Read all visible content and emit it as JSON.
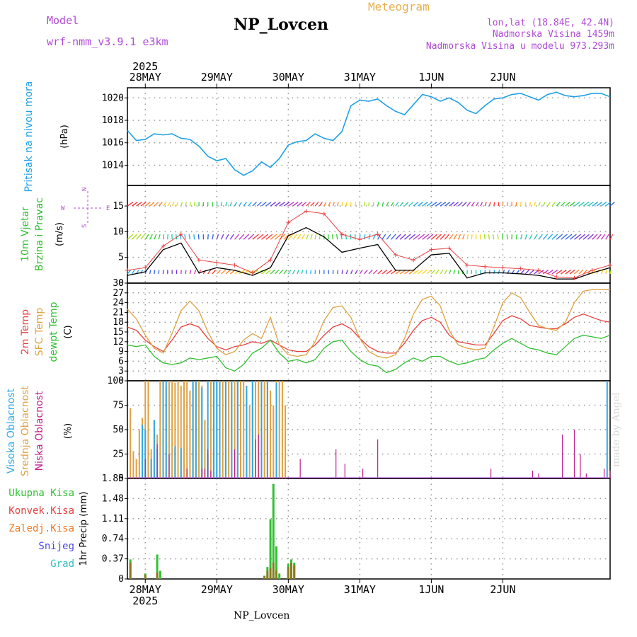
{
  "header": {
    "model_label": "Model",
    "model_name": "wrf-nmm_v3.9.1 e3km",
    "station": "NP_Lovcen",
    "product": "Meteogram",
    "lonlat": "lon,lat (18.84E, 42.4N)",
    "elevation": "Nadmorska Visina 1459m",
    "model_elevation": "Nadmorska Visina u modelu 973.293m"
  },
  "footer": {
    "station": "NP_Lovcen",
    "credit": "made by Angel"
  },
  "colors": {
    "pressure": "#1ea0e6",
    "temp2m": "#e84040",
    "sfc": "#e0a040",
    "dewpt": "#30c030",
    "high_cloud": "#30a8e8",
    "mid_cloud": "#e0a040",
    "low_cloud": "#c0208f",
    "total": "#30c030",
    "convective": "#e84040",
    "freezing": "#f07820",
    "snow": "#4a4ae8",
    "hail": "#30c0c0"
  },
  "chart_data": [
    {
      "type": "line",
      "id": "pressure",
      "title": "Pritisak na nivou mora",
      "ylabel": "(hPa)",
      "ylim": [
        1012.2,
        1020.9
      ],
      "yticks": [
        1014,
        1016,
        1018,
        1020
      ],
      "x_unit": "hours since 2025-05-27 18:00",
      "x": [
        0,
        3,
        6,
        9,
        12,
        15,
        18,
        21,
        24,
        27,
        30,
        33,
        36,
        39,
        42,
        45,
        48,
        51,
        54,
        57,
        60,
        63,
        66,
        69,
        72,
        75,
        78,
        81,
        84,
        87,
        90,
        93,
        96,
        99,
        102,
        105,
        108,
        111,
        114,
        117,
        120,
        123,
        126,
        129,
        132,
        135,
        138,
        141,
        144,
        147,
        150,
        153,
        156,
        159,
        162
      ],
      "values": [
        1017.1,
        1016.2,
        1016.3,
        1016.8,
        1016.7,
        1016.8,
        1016.4,
        1016.3,
        1015.7,
        1014.8,
        1014.4,
        1014.6,
        1013.6,
        1013.1,
        1013.5,
        1014.3,
        1013.8,
        1014.6,
        1015.8,
        1016.1,
        1016.2,
        1016.8,
        1016.4,
        1016.2,
        1017.0,
        1019.3,
        1019.8,
        1019.7,
        1019.9,
        1019.3,
        1018.8,
        1018.5,
        1019.4,
        1020.3,
        1020.1,
        1019.7,
        1020.0,
        1019.6,
        1018.9,
        1018.6,
        1019.3,
        1019.9,
        1020.0,
        1020.3,
        1020.4,
        1020.1,
        1019.8,
        1020.3,
        1020.5,
        1020.2,
        1020.1,
        1020.2,
        1020.4,
        1020.4,
        1020.1
      ]
    },
    {
      "type": "line",
      "id": "wind",
      "title": "10m Vjetar Brzina i Pravac",
      "ylabel": "(m/s)",
      "compass": {
        "n": "N",
        "s": "S",
        "e": "E",
        "w": "W"
      },
      "ylim": [
        0,
        19
      ],
      "yticks": [
        0,
        5,
        10,
        15
      ],
      "x": [
        0,
        6,
        12,
        18,
        24,
        30,
        36,
        42,
        48,
        54,
        60,
        66,
        72,
        78,
        84,
        90,
        96,
        102,
        108,
        114,
        120,
        126,
        132,
        138,
        144,
        150,
        156,
        162
      ],
      "series": [
        {
          "name": "mean",
          "values": [
            1.5,
            2.2,
            6.5,
            7.8,
            2.0,
            3.0,
            2.5,
            1.5,
            3.0,
            9.2,
            10.8,
            9.0,
            6.0,
            6.8,
            7.5,
            2.5,
            2.5,
            5.5,
            5.8,
            1.0,
            2.0,
            2.0,
            1.8,
            1.5,
            0.8,
            0.8,
            2.0,
            3.0
          ]
        },
        {
          "name": "gust",
          "values": [
            2.5,
            3.0,
            7.2,
            9.5,
            4.5,
            4.0,
            3.5,
            2.0,
            4.5,
            11.8,
            14.0,
            13.5,
            9.5,
            8.5,
            9.5,
            5.5,
            4.5,
            6.5,
            6.8,
            3.5,
            3.2,
            3.0,
            2.8,
            2.5,
            1.2,
            1.0,
            2.5,
            3.5
          ]
        }
      ],
      "barb_rows": [
        15,
        8.5,
        1.8
      ]
    },
    {
      "type": "line",
      "id": "temperature",
      "title": "2m Temp / SFC Temp / dewpt Temp",
      "labels": [
        "2m Temp",
        "SFC Temp",
        "dewpt Temp"
      ],
      "ylabel": "(C)",
      "ylim": [
        0,
        30
      ],
      "yticks": [
        0,
        3,
        6,
        9,
        12,
        15,
        18,
        21,
        24,
        27,
        30
      ],
      "x": [
        0,
        3,
        6,
        9,
        12,
        15,
        18,
        21,
        24,
        27,
        30,
        33,
        36,
        39,
        42,
        45,
        48,
        51,
        54,
        57,
        60,
        63,
        66,
        69,
        72,
        75,
        78,
        81,
        84,
        87,
        90,
        93,
        96,
        99,
        102,
        105,
        108,
        111,
        114,
        117,
        120,
        123,
        126,
        129,
        132,
        135,
        138,
        141,
        144,
        147,
        150,
        153,
        156,
        159,
        162
      ],
      "series": [
        {
          "name": "2m Temp",
          "values": [
            16.5,
            15.5,
            12.5,
            10.5,
            9.0,
            12.5,
            16.5,
            17.5,
            16.5,
            13.0,
            10.5,
            9.5,
            10.5,
            11.0,
            12.0,
            11.5,
            12.5,
            11.0,
            9.5,
            9.0,
            9.0,
            11.0,
            14.0,
            16.5,
            17.5,
            16.0,
            13.0,
            10.5,
            9.0,
            8.5,
            8.5,
            11.5,
            15.5,
            18.5,
            19.5,
            18.0,
            14.0,
            12.0,
            11.5,
            11.0,
            11.0,
            14.5,
            18.5,
            20.0,
            19.0,
            17.0,
            16.5,
            16.0,
            16.0,
            17.5,
            19.5,
            20.5,
            19.5,
            18.5,
            18.0
          ]
        },
        {
          "name": "SFC Temp",
          "values": [
            22.0,
            19.0,
            14.0,
            10.0,
            8.5,
            14.5,
            21.5,
            24.5,
            21.5,
            15.0,
            10.0,
            8.0,
            9.0,
            12.5,
            14.5,
            13.0,
            19.5,
            11.0,
            8.0,
            7.5,
            8.0,
            12.0,
            18.5,
            22.5,
            23.0,
            19.5,
            13.0,
            9.0,
            7.5,
            7.0,
            8.0,
            13.0,
            20.5,
            25.0,
            26.0,
            23.0,
            15.5,
            11.0,
            10.0,
            9.5,
            10.0,
            16.5,
            24.0,
            27.0,
            25.5,
            21.0,
            17.0,
            16.0,
            15.5,
            18.0,
            24.0,
            27.5,
            28.0,
            28.0,
            28.0
          ]
        },
        {
          "name": "dewpt Temp",
          "values": [
            11.0,
            10.5,
            11.0,
            7.5,
            5.5,
            5.0,
            5.5,
            7.0,
            6.5,
            7.0,
            7.5,
            4.0,
            3.0,
            5.0,
            8.5,
            10.0,
            12.5,
            8.5,
            6.0,
            6.5,
            5.5,
            6.5,
            10.0,
            12.0,
            12.5,
            9.0,
            6.5,
            5.0,
            4.5,
            2.5,
            3.5,
            5.5,
            7.0,
            6.0,
            7.5,
            7.5,
            6.0,
            5.0,
            5.5,
            6.5,
            7.0,
            9.5,
            11.5,
            13.0,
            11.5,
            10.0,
            9.5,
            8.5,
            8.0,
            10.5,
            13.0,
            14.0,
            13.5,
            13.0,
            14.0
          ]
        }
      ]
    },
    {
      "type": "bar",
      "id": "clouds",
      "title": "Visoka / Srednja / Niska Oblacnost",
      "labels": [
        "Visoka Oblacnost",
        "Srednja Oblacnost",
        "Niska Oblacnost"
      ],
      "ylabel": "(%)",
      "ylim": [
        0,
        100
      ],
      "yticks": [
        0,
        25,
        50,
        75,
        100
      ],
      "series": [
        {
          "name": "Srednja",
          "x": [
            1,
            2,
            3,
            4,
            5,
            6,
            7,
            8,
            9,
            10,
            11,
            12,
            13,
            14,
            15,
            16,
            17,
            18,
            19,
            20,
            21,
            22,
            23,
            24,
            25,
            26,
            27,
            28,
            29,
            30,
            31,
            32,
            33,
            34,
            35,
            36,
            37,
            38,
            39,
            40,
            41,
            42,
            43,
            44,
            45,
            46,
            47,
            48,
            49,
            50,
            51,
            52,
            53
          ],
          "values": [
            72,
            28,
            20,
            50,
            62,
            100,
            100,
            30,
            60,
            45,
            100,
            100,
            95,
            100,
            100,
            98,
            100,
            95,
            100,
            100,
            90,
            100,
            100,
            100,
            95,
            60,
            25,
            100,
            100,
            100,
            100,
            100,
            100,
            100,
            95,
            100,
            100,
            100,
            100,
            90,
            75,
            100,
            100,
            100,
            100,
            100,
            100,
            90,
            75,
            100,
            100,
            100,
            75
          ]
        },
        {
          "name": "Visoka",
          "x": [
            5,
            6,
            8,
            9,
            10,
            12,
            13,
            16,
            18,
            22,
            23,
            25,
            27,
            29,
            30,
            31,
            33,
            35,
            37,
            40,
            42,
            45,
            47,
            50,
            161
          ],
          "values": [
            55,
            50,
            20,
            60,
            30,
            100,
            100,
            33,
            31,
            100,
            100,
            93,
            100,
            100,
            100,
            99,
            100,
            100,
            100,
            95,
            100,
            100,
            100,
            98,
            100
          ]
        },
        {
          "name": "Niska",
          "x": [
            6,
            10,
            14,
            20,
            25,
            26,
            27,
            28,
            36,
            43,
            44,
            58,
            70,
            73,
            79,
            84,
            122,
            136,
            138,
            146,
            150,
            152,
            154,
            160,
            162
          ],
          "values": [
            20,
            35,
            25,
            10,
            10,
            10,
            30,
            8,
            30,
            40,
            45,
            20,
            30,
            15,
            10,
            40,
            10,
            8,
            5,
            45,
            50,
            25,
            5,
            10,
            8
          ]
        }
      ]
    },
    {
      "type": "bar",
      "id": "precipitation",
      "labels": [
        "Ukupna Kisa",
        "Konvek.Kisa",
        "Zaledj.Kisa",
        "Snijeg",
        "Grad"
      ],
      "ylabel": "1hr Precip (mm)",
      "ylim": [
        0,
        1.85
      ],
      "yticks": [
        0,
        0.37,
        0.74,
        1.11,
        1.48,
        1.85
      ],
      "series": [
        {
          "name": "Ukupna Kisa",
          "x": [
            1,
            6,
            10,
            11,
            46,
            47,
            48,
            49,
            50,
            51,
            54,
            55,
            56
          ],
          "values": [
            0.36,
            0.1,
            0.45,
            0.15,
            0.06,
            0.22,
            1.1,
            1.75,
            0.6,
            0.1,
            0.28,
            0.36,
            0.3
          ]
        },
        {
          "name": "Konvek.Kisa",
          "x": [
            1,
            6,
            10,
            46,
            47,
            48,
            49,
            50,
            54,
            55,
            56
          ],
          "values": [
            0.3,
            0.08,
            0.12,
            0.05,
            0.15,
            0.2,
            0.3,
            0.15,
            0.22,
            0.3,
            0.25
          ]
        }
      ]
    }
  ],
  "xaxis": {
    "year": "2025",
    "day_labels": [
      "28MAY",
      "29MAY",
      "30MAY",
      "31MAY",
      "1JUN",
      "2JUN"
    ],
    "label_hours": [
      6,
      30,
      54,
      78,
      102,
      126
    ]
  }
}
